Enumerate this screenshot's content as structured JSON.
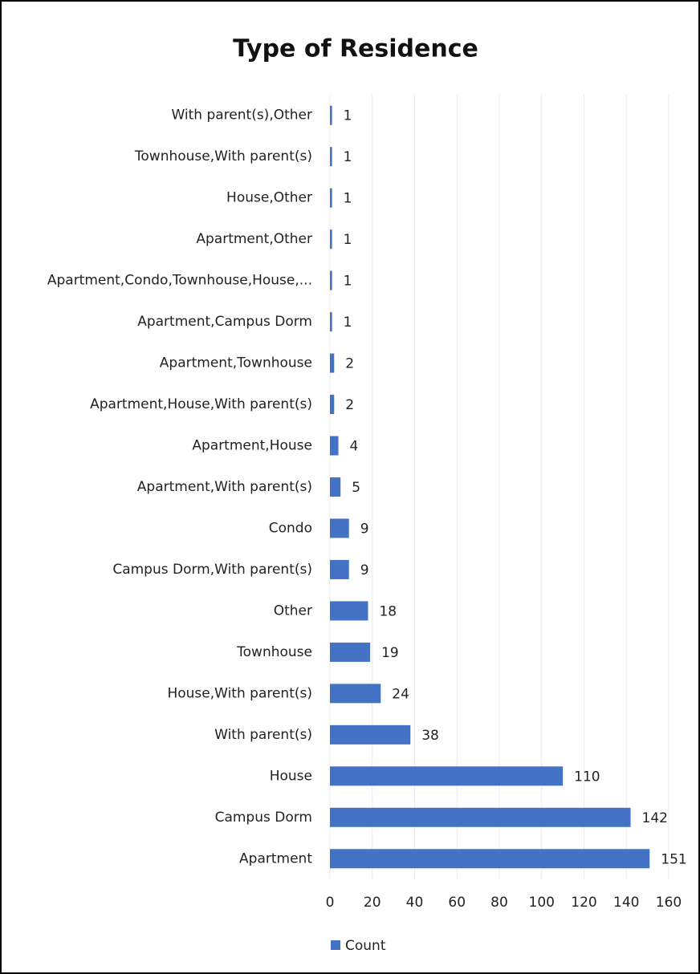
{
  "chart_data": {
    "type": "bar",
    "orientation": "horizontal",
    "title": "Type of Residence",
    "categories": [
      "With parent(s),Other",
      "Townhouse,With parent(s)",
      "House,Other",
      "Apartment,Other",
      "Apartment,Condo,Townhouse,House,...",
      "Apartment,Campus Dorm",
      "Apartment,Townhouse",
      "Apartment,House,With parent(s)",
      "Apartment,House",
      "Apartment,With parent(s)",
      "Condo",
      "Campus Dorm,With parent(s)",
      "Other",
      "Townhouse",
      "House,With parent(s)",
      "With parent(s)",
      "House",
      "Campus Dorm",
      "Apartment"
    ],
    "series": [
      {
        "name": "Count",
        "color": "#4472c4",
        "values": [
          1,
          1,
          1,
          1,
          1,
          1,
          2,
          2,
          4,
          5,
          9,
          9,
          18,
          19,
          24,
          38,
          110,
          142,
          151
        ]
      }
    ],
    "xlim": [
      0,
      160
    ],
    "xticks": [
      0,
      20,
      40,
      60,
      80,
      100,
      120,
      140,
      160
    ],
    "grid": true,
    "legend": "bottom"
  }
}
